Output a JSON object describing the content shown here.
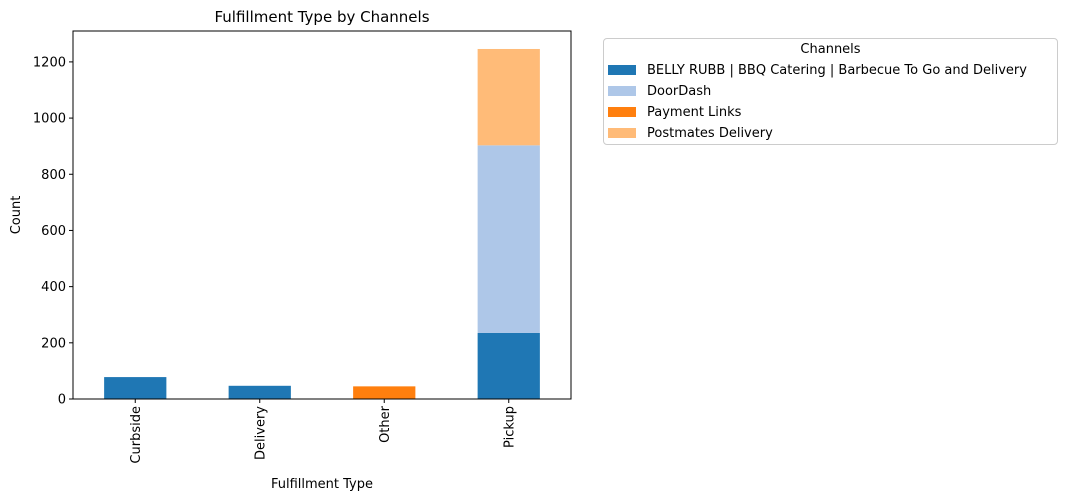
{
  "chart_data": {
    "type": "bar",
    "stacked": true,
    "title": "Fulfillment Type by Channels",
    "xlabel": "Fulfillment Type",
    "ylabel": "Count",
    "categories": [
      "Curbside",
      "Delivery",
      "Other",
      "Pickup"
    ],
    "ylim": [
      0,
      1310
    ],
    "yticks": [
      0,
      200,
      400,
      600,
      800,
      1000,
      1200
    ],
    "grid": false,
    "legend": {
      "title": "Channels",
      "placement": "outside-right"
    },
    "series": [
      {
        "name": "BELLY RUBB | BBQ Catering | Barbecue To Go and Delivery",
        "color": "#1f77b4",
        "values": [
          78,
          47,
          0,
          235
        ]
      },
      {
        "name": "DoorDash",
        "color": "#aec7e8",
        "values": [
          0,
          0,
          0,
          668
        ]
      },
      {
        "name": "Payment Links",
        "color": "#ff7f0e",
        "values": [
          0,
          0,
          45,
          0
        ]
      },
      {
        "name": "Postmates Delivery",
        "color": "#ffbb78",
        "values": [
          0,
          0,
          0,
          343
        ]
      }
    ]
  }
}
